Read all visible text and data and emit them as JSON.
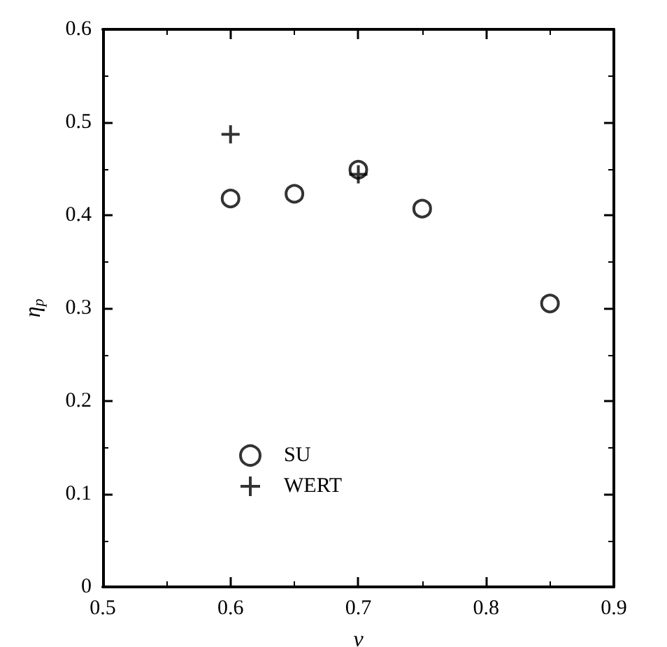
{
  "chart_data": {
    "type": "scatter",
    "xlabel": "ν",
    "ylabel": "η$_{p}$",
    "x": [
      0.6,
      0.65,
      0.7,
      0.75,
      0.85
    ],
    "series": [
      {
        "name": "SU",
        "color": "#000000",
        "marker": "circle",
        "values": [
          0.418,
          0.423,
          0.449,
          0.407,
          0.305
        ]
      },
      {
        "name": "WERT",
        "color": "#000000",
        "marker": "cross",
        "x": [
          0.6,
          0.7
        ],
        "values": [
          0.487,
          0.444
        ]
      }
    ],
    "xlim": [
      0.5,
      0.9
    ],
    "xticks": [
      0.5,
      0.6,
      0.7,
      0.8,
      0.9
    ],
    "ylim": [
      0,
      0.6
    ],
    "yticks": [
      0,
      0.1,
      0.2,
      0.3,
      0.4,
      0.5,
      0.6
    ],
    "grid": false,
    "legend": "bottom left"
  }
}
